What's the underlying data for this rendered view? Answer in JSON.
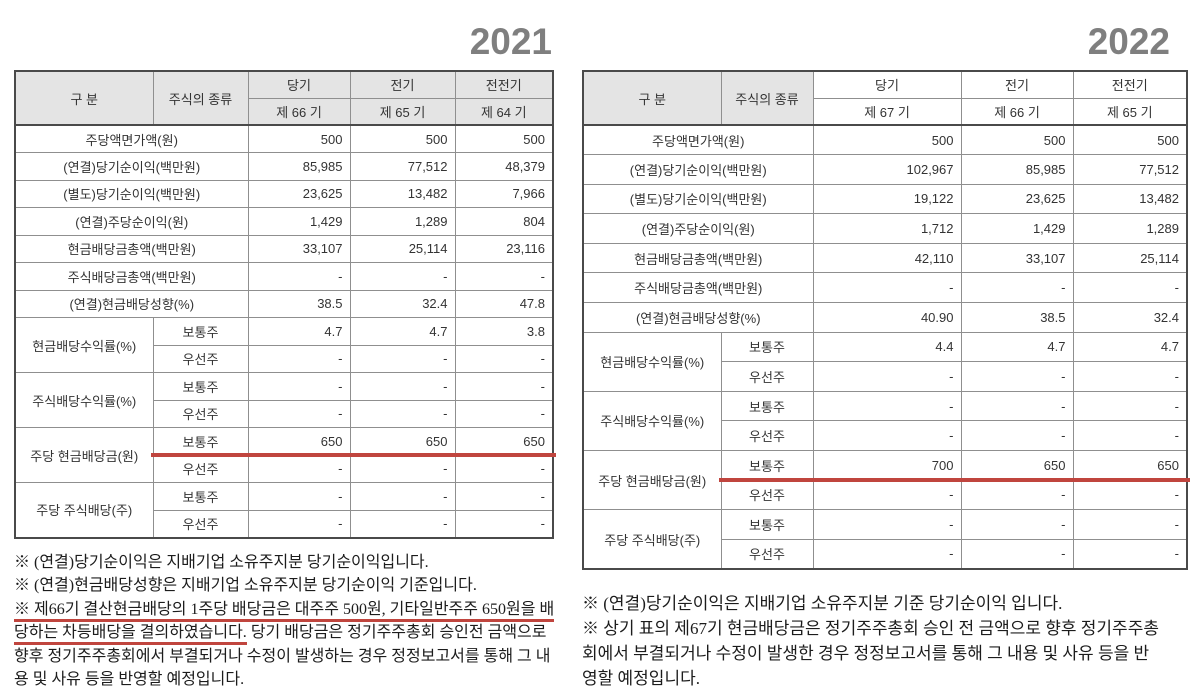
{
  "colors": {
    "annotation_red": "#c0453e",
    "header_gray": "#e4e4e4",
    "year_gray": "#7f7f7f"
  },
  "left": {
    "year": "2021",
    "table": {
      "header": {
        "category": "구  분",
        "share_type": "주식의 종류",
        "periods": [
          {
            "label": "당기",
            "sub": "제 66 기"
          },
          {
            "label": "전기",
            "sub": "제 65 기"
          },
          {
            "label": "전전기",
            "sub": "제 64 기"
          }
        ]
      },
      "simple_rows": [
        {
          "label": "주당액면가액(원)",
          "values": [
            "500",
            "500",
            "500"
          ]
        },
        {
          "label": "(연결)당기순이익(백만원)",
          "values": [
            "85,985",
            "77,512",
            "48,379"
          ]
        },
        {
          "label": "(별도)당기순이익(백만원)",
          "values": [
            "23,625",
            "13,482",
            "7,966"
          ]
        },
        {
          "label": "(연결)주당순이익(원)",
          "values": [
            "1,429",
            "1,289",
            "804"
          ]
        },
        {
          "label": "현금배당금총액(백만원)",
          "values": [
            "33,107",
            "25,114",
            "23,116"
          ]
        },
        {
          "label": "주식배당금총액(백만원)",
          "values": [
            "-",
            "-",
            "-"
          ]
        },
        {
          "label": "(연결)현금배당성향(%)",
          "values": [
            "38.5",
            "32.4",
            "47.8"
          ]
        }
      ],
      "group_rows": [
        {
          "label": "현금배당수익률(%)",
          "rows": [
            {
              "type": "보통주",
              "values": [
                "4.7",
                "4.7",
                "3.8"
              ],
              "underlined": false
            },
            {
              "type": "우선주",
              "values": [
                "-",
                "-",
                "-"
              ],
              "underlined": false
            }
          ]
        },
        {
          "label": "주식배당수익률(%)",
          "rows": [
            {
              "type": "보통주",
              "values": [
                "-",
                "-",
                "-"
              ],
              "underlined": false
            },
            {
              "type": "우선주",
              "values": [
                "-",
                "-",
                "-"
              ],
              "underlined": false
            }
          ]
        },
        {
          "label": "주당 현금배당금(원)",
          "rows": [
            {
              "type": "보통주",
              "values": [
                "650",
                "650",
                "650"
              ],
              "underlined": true
            },
            {
              "type": "우선주",
              "values": [
                "-",
                "-",
                "-"
              ],
              "underlined": false
            }
          ]
        },
        {
          "label": "주당 주식배당(주)",
          "rows": [
            {
              "type": "보통주",
              "values": [
                "-",
                "-",
                "-"
              ],
              "underlined": false
            },
            {
              "type": "우선주",
              "values": [
                "-",
                "-",
                "-"
              ],
              "underlined": false
            }
          ]
        }
      ]
    },
    "footnotes": [
      {
        "segments": [
          {
            "t": "※ (연결)당기순이익은 지배기업 소유주지분 당기순이익입니다.",
            "u": false
          }
        ]
      },
      {
        "segments": [
          {
            "t": "※ (연결)현금배당성향은 지배기업 소유주지분 당기순이익 기준입니다.",
            "u": false
          }
        ]
      },
      {
        "segments": [
          {
            "t": "※ 제66기 결산현금배당의 1주당 배당금은 대주주 500원, 기타일반주주 650원을 배",
            "u": true
          }
        ]
      },
      {
        "segments": [
          {
            "t": "당하는 차등배당을 결의하였습니다.",
            "u": true
          },
          {
            "t": " 당기 배당금은 정기주주총회 승인전 금액으로",
            "u": false
          }
        ]
      },
      {
        "segments": [
          {
            "t": "향후 정기주주총회에서 부결되거나 수정이 발생하는 경우 정정보고서를 통해 그 내",
            "u": false
          }
        ]
      },
      {
        "segments": [
          {
            "t": "용 및 사유 등을 반영할 예정입니다.",
            "u": false
          }
        ]
      }
    ]
  },
  "right": {
    "year": "2022",
    "table": {
      "header": {
        "category": "구  분",
        "share_type": "주식의 종류",
        "periods": [
          {
            "label": "당기",
            "sub": "제 67 기"
          },
          {
            "label": "전기",
            "sub": "제 66 기"
          },
          {
            "label": "전전기",
            "sub": "제 65 기"
          }
        ]
      },
      "simple_rows": [
        {
          "label": "주당액면가액(원)",
          "values": [
            "500",
            "500",
            "500"
          ]
        },
        {
          "label": "(연결)당기순이익(백만원)",
          "values": [
            "102,967",
            "85,985",
            "77,512"
          ]
        },
        {
          "label": "(별도)당기순이익(백만원)",
          "values": [
            "19,122",
            "23,625",
            "13,482"
          ]
        },
        {
          "label": "(연결)주당순이익(원)",
          "values": [
            "1,712",
            "1,429",
            "1,289"
          ]
        },
        {
          "label": "현금배당금총액(백만원)",
          "values": [
            "42,110",
            "33,107",
            "25,114"
          ]
        },
        {
          "label": "주식배당금총액(백만원)",
          "values": [
            "-",
            "-",
            "-"
          ]
        },
        {
          "label": "(연결)현금배당성향(%)",
          "values": [
            "40.90",
            "38.5",
            "32.4"
          ]
        }
      ],
      "group_rows": [
        {
          "label": "현금배당수익률(%)",
          "rows": [
            {
              "type": "보통주",
              "values": [
                "4.4",
                "4.7",
                "4.7"
              ],
              "underlined": false
            },
            {
              "type": "우선주",
              "values": [
                "-",
                "-",
                "-"
              ],
              "underlined": false
            }
          ]
        },
        {
          "label": "주식배당수익률(%)",
          "rows": [
            {
              "type": "보통주",
              "values": [
                "-",
                "-",
                "-"
              ],
              "underlined": false
            },
            {
              "type": "우선주",
              "values": [
                "-",
                "-",
                "-"
              ],
              "underlined": false
            }
          ]
        },
        {
          "label": "주당 현금배당금(원)",
          "rows": [
            {
              "type": "보통주",
              "values": [
                "700",
                "650",
                "650"
              ],
              "underlined": true
            },
            {
              "type": "우선주",
              "values": [
                "-",
                "-",
                "-"
              ],
              "underlined": false
            }
          ]
        },
        {
          "label": "주당 주식배당(주)",
          "rows": [
            {
              "type": "보통주",
              "values": [
                "-",
                "-",
                "-"
              ],
              "underlined": false
            },
            {
              "type": "우선주",
              "values": [
                "-",
                "-",
                "-"
              ],
              "underlined": false
            }
          ]
        }
      ]
    },
    "footnotes": [
      {
        "segments": [
          {
            "t": "※  (연결)당기순이익은 지배기업 소유주지분 기준 당기순이익 입니다.",
            "u": false
          }
        ]
      },
      {
        "segments": [
          {
            "t": "※ 상기 표의 제67기 현금배당금은 정기주주총회 승인 전 금액으로 향후 정기주주총",
            "u": false
          }
        ]
      },
      {
        "segments": [
          {
            "t": "회에서 부결되거나 수정이 발생한 경우 정정보고서를 통해 그 내용 및 사유 등을 반",
            "u": false
          }
        ]
      },
      {
        "segments": [
          {
            "t": "영할 예정입니다.",
            "u": false
          }
        ]
      }
    ]
  }
}
